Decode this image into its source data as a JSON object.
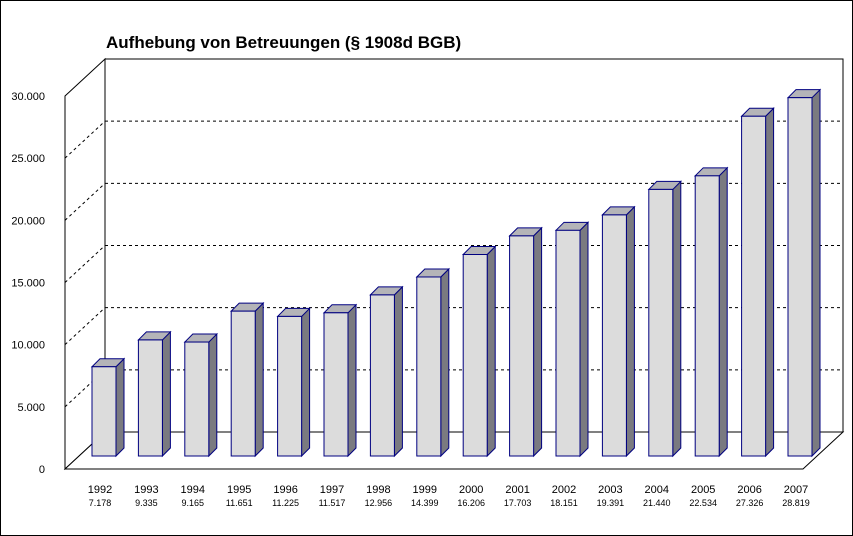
{
  "chart_data": {
    "type": "bar",
    "title": "Aufhebung von Betreuungen (§ 1908d BGB)",
    "xlabel": "",
    "ylabel": "",
    "ylim": [
      0,
      30000
    ],
    "yticks": [
      "0",
      "5.000",
      "10.000",
      "15.000",
      "20.000",
      "25.000",
      "30.000"
    ],
    "grid": true,
    "categories": [
      "1992",
      "1993",
      "1994",
      "1995",
      "1996",
      "1997",
      "1998",
      "1999",
      "2000",
      "2001",
      "2002",
      "2003",
      "2004",
      "2005",
      "2006",
      "2007"
    ],
    "values": [
      7178,
      9335,
      9165,
      11651,
      11225,
      11517,
      12956,
      14399,
      16206,
      17703,
      18151,
      19391,
      21440,
      22534,
      27326,
      28819
    ],
    "value_labels": [
      "7.178",
      "9.335",
      "9.165",
      "11.651",
      "11.225",
      "11.517",
      "12.956",
      "14.399",
      "16.206",
      "17.703",
      "18.151",
      "19.391",
      "21.440",
      "22.534",
      "27.326",
      "28.819"
    ],
    "colors": {
      "bar_front": "#dcdcdc",
      "bar_side": "#7a7a80",
      "bar_top": "#b4b4b8",
      "bar_edge": "#000080"
    }
  }
}
